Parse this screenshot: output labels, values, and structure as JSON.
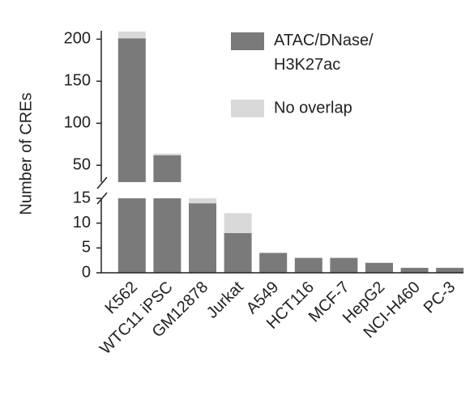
{
  "chart_data": {
    "type": "stacked-bar",
    "y_label": "Number of CREs",
    "categories": [
      "K562",
      "WTC11 iPSC",
      "GM12878",
      "Jurkat",
      "A549",
      "HCT116",
      "MCF-7",
      "HepG2",
      "NCI-H460",
      "PC-3"
    ],
    "series": [
      {
        "name": "ATAC/DNase/H3K27ac",
        "color": "#7a7a7a",
        "values": [
          201,
          62,
          14,
          8,
          4,
          3,
          3,
          2,
          1,
          1
        ]
      },
      {
        "name": "No overlap",
        "color": "#d9d9d9",
        "values": [
          8,
          2,
          1,
          4,
          0,
          0,
          0,
          0,
          0,
          0
        ]
      }
    ],
    "ylim": [
      0,
      15
    ],
    "yticks": [
      0,
      5,
      10,
      15
    ],
    "axis_break": {
      "ylim": [
        30,
        210
      ],
      "yticks": [
        50,
        100,
        150,
        200
      ]
    },
    "legend": "top-right"
  }
}
